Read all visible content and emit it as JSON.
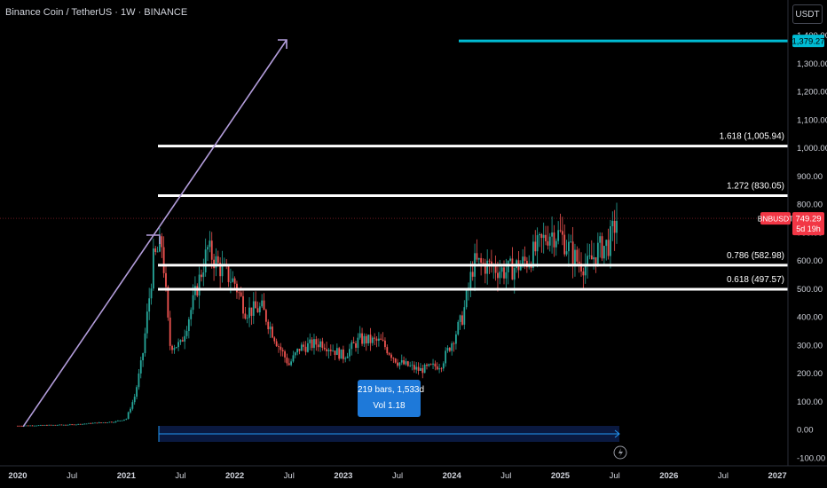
{
  "header": {
    "title": "Binance Coin / TetherUS · 1W · BINANCE",
    "currency": "USDT"
  },
  "chart_data": {
    "type": "candlestick",
    "symbol": "BNBUSDT",
    "x_ticks": [
      "2020",
      "Jul",
      "2021",
      "Jul",
      "2022",
      "Jul",
      "2023",
      "Jul",
      "2024",
      "Jul",
      "2025",
      "Jul",
      "2026",
      "Jul",
      "2027"
    ],
    "y_ticks": [
      "1,400.00",
      "1,300.00",
      "1,200.00",
      "1,100.00",
      "1,000.00",
      "900.00",
      "800.00",
      "700.00",
      "600.00",
      "500.00",
      "400.00",
      "300.00",
      "200.00",
      "100.00",
      "0.00",
      "-100.00"
    ],
    "y_tick_values": [
      1400,
      1300,
      1200,
      1100,
      1000,
      900,
      800,
      700,
      600,
      500,
      400,
      300,
      200,
      100,
      0,
      -100
    ],
    "ylim": [
      -100,
      1450
    ],
    "price_path": [
      {
        "date": "2020.00",
        "close": 13
      },
      {
        "date": "2020.50",
        "close": 17
      },
      {
        "date": "2020.90",
        "close": 28
      },
      {
        "date": "2021.00",
        "close": 38
      },
      {
        "date": "2021.08",
        "close": 120
      },
      {
        "date": "2021.15",
        "close": 260
      },
      {
        "date": "2021.25",
        "close": 600
      },
      {
        "date": "2021.33",
        "close": 660
      },
      {
        "date": "2021.40",
        "close": 300
      },
      {
        "date": "2021.50",
        "close": 300
      },
      {
        "date": "2021.60",
        "close": 430
      },
      {
        "date": "2021.75",
        "close": 640
      },
      {
        "date": "2021.85",
        "close": 580
      },
      {
        "date": "2022.00",
        "close": 520
      },
      {
        "date": "2022.10",
        "close": 420
      },
      {
        "date": "2022.25",
        "close": 430
      },
      {
        "date": "2022.40",
        "close": 300
      },
      {
        "date": "2022.50",
        "close": 230
      },
      {
        "date": "2022.60",
        "close": 290
      },
      {
        "date": "2022.80",
        "close": 310
      },
      {
        "date": "2023.00",
        "close": 260
      },
      {
        "date": "2023.15",
        "close": 320
      },
      {
        "date": "2023.35",
        "close": 310
      },
      {
        "date": "2023.50",
        "close": 240
      },
      {
        "date": "2023.70",
        "close": 210
      },
      {
        "date": "2023.90",
        "close": 230
      },
      {
        "date": "2024.00",
        "close": 310
      },
      {
        "date": "2024.10",
        "close": 400
      },
      {
        "date": "2024.20",
        "close": 590
      },
      {
        "date": "2024.35",
        "close": 580
      },
      {
        "date": "2024.50",
        "close": 560
      },
      {
        "date": "2024.70",
        "close": 600
      },
      {
        "date": "2024.90",
        "close": 700
      },
      {
        "date": "2025.00",
        "close": 690
      },
      {
        "date": "2025.15",
        "close": 600
      },
      {
        "date": "2025.25",
        "close": 580
      },
      {
        "date": "2025.35",
        "close": 640
      },
      {
        "date": "2025.45",
        "close": 660
      },
      {
        "date": "2025.52",
        "close": 749.29
      }
    ],
    "fib_levels": [
      {
        "label": "1.618 (1,005.94)",
        "value": 1005.94
      },
      {
        "label": "1.272 (830.05)",
        "value": 830.05
      },
      {
        "label": "0.786 (582.98)",
        "value": 582.98
      },
      {
        "label": "0.618 (497.57)",
        "value": 497.57
      }
    ],
    "target_level": {
      "label": "1,379.27",
      "value": 1379.27
    },
    "current_price": {
      "symbol": "BNBUSDT",
      "value": 749.29,
      "label": "749.29",
      "countdown": "5d 19h"
    },
    "measure": {
      "bars_text": "219 bars, 1,533d",
      "vol_text": "Vol 1.18"
    },
    "colors": {
      "up": "#26a69a",
      "down": "#ef5350",
      "fib": "#ffffff",
      "target": "#00bcd4",
      "arrow": "#b39ddb",
      "measure": "#2962ff",
      "price_tag": "#f23645"
    }
  }
}
